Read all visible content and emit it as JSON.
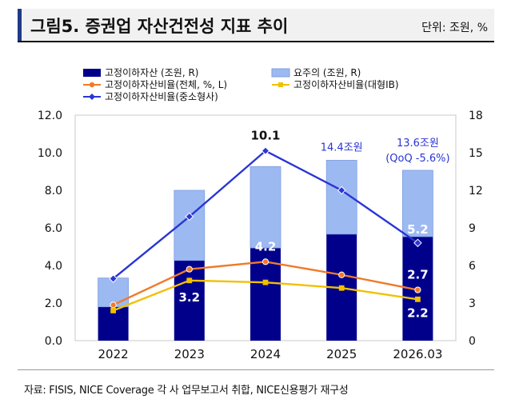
{
  "header": {
    "title": "그림5. 증권업 자산건전성 지표 추이",
    "unit": "단위: 조원, %"
  },
  "footer": {
    "source": "자료: FISIS, NICE Coverage 각 사 업무보고서 취합, NICE신용평가 재구성"
  },
  "chart_data": {
    "type": "bar",
    "categories": [
      "2022",
      "2023",
      "2024",
      "2025",
      "2026.03"
    ],
    "y_left": {
      "range": [
        0,
        12
      ],
      "ticks": [
        "0.0",
        "2.0",
        "4.0",
        "6.0",
        "8.0",
        "10.0",
        "12.0"
      ],
      "tick_values": [
        0,
        2,
        4,
        6,
        8,
        10,
        12
      ]
    },
    "y_right": {
      "range": [
        0,
        18
      ],
      "ticks": [
        "0",
        "3",
        "6",
        "9",
        "12",
        "15",
        "18"
      ],
      "tick_values": [
        0,
        3,
        6,
        9,
        12,
        15,
        18
      ]
    },
    "series": [
      {
        "name": "고정이하자산 (조원, R)",
        "type": "stacked-bar",
        "axis": "right",
        "color": "#00008b",
        "values": [
          2.7,
          6.4,
          7.4,
          8.5,
          8.3
        ]
      },
      {
        "name": "요주의 (조원, R)",
        "type": "stacked-bar",
        "axis": "right",
        "color": "#9db9f2",
        "values": [
          2.3,
          5.6,
          6.5,
          5.9,
          5.3
        ]
      },
      {
        "name": "고정이하자산비율(전체, %, L)",
        "type": "line",
        "axis": "left",
        "color": "#f07a2a",
        "marker": "circle",
        "values": [
          1.9,
          3.8,
          4.2,
          3.5,
          2.7
        ]
      },
      {
        "name": "고정이하자산비율(대형IB)",
        "type": "line",
        "axis": "left",
        "color": "#f2c000",
        "marker": "square",
        "values": [
          1.6,
          3.2,
          3.1,
          2.8,
          2.2
        ]
      },
      {
        "name": "고정이하자산비율(중소형사)",
        "type": "line",
        "axis": "left",
        "color": "#2a35d4",
        "marker": "diamond",
        "values": [
          3.3,
          6.6,
          10.1,
          8.0,
          5.2
        ]
      }
    ],
    "annotations": [
      {
        "category": "2023",
        "text": "3.2",
        "color": "#ffffff"
      },
      {
        "category": "2024",
        "text": "10.1",
        "color": "#111111"
      },
      {
        "category": "2024",
        "text": "4.2",
        "color": "#ffffff"
      },
      {
        "category": "2025",
        "text": "14.4조원",
        "color": "#2a35d4"
      },
      {
        "category": "2026.03",
        "text": "13.6조원",
        "color": "#2a35d4"
      },
      {
        "category": "2026.03",
        "text": "(QoQ -5.6%)",
        "color": "#2a35d4"
      },
      {
        "category": "2026.03",
        "text": "5.2",
        "color": "#ffffff"
      },
      {
        "category": "2026.03",
        "text": "2.7",
        "color": "#ffffff"
      },
      {
        "category": "2026.03",
        "text": "2.2",
        "color": "#ffffff"
      }
    ],
    "legend_position": "top-left",
    "grid": false
  }
}
